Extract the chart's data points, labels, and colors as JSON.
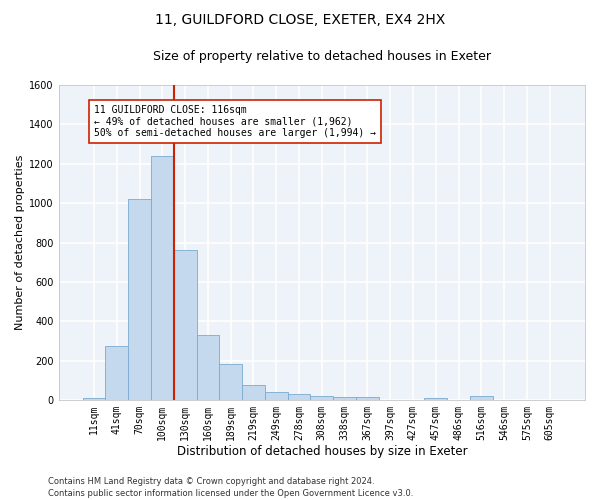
{
  "title1": "11, GUILDFORD CLOSE, EXETER, EX4 2HX",
  "title2": "Size of property relative to detached houses in Exeter",
  "xlabel": "Distribution of detached houses by size in Exeter",
  "ylabel": "Number of detached properties",
  "bar_labels": [
    "11sqm",
    "41sqm",
    "70sqm",
    "100sqm",
    "130sqm",
    "160sqm",
    "189sqm",
    "219sqm",
    "249sqm",
    "278sqm",
    "308sqm",
    "338sqm",
    "367sqm",
    "397sqm",
    "427sqm",
    "457sqm",
    "486sqm",
    "516sqm",
    "546sqm",
    "575sqm",
    "605sqm"
  ],
  "bar_values": [
    10,
    275,
    1020,
    1240,
    760,
    330,
    185,
    75,
    40,
    30,
    20,
    15,
    15,
    0,
    0,
    10,
    0,
    20,
    0,
    0,
    0
  ],
  "bar_color": "#c5d9ee",
  "bar_edge_color": "#7aaad0",
  "bar_width": 1.0,
  "ylim": [
    0,
    1600
  ],
  "yticks": [
    0,
    200,
    400,
    600,
    800,
    1000,
    1200,
    1400,
    1600
  ],
  "vline_pos": 3.53,
  "vline_color": "#cc2200",
  "annotation_box_text": "11 GUILDFORD CLOSE: 116sqm\n← 49% of detached houses are smaller (1,962)\n50% of semi-detached houses are larger (1,994) →",
  "footer": "Contains HM Land Registry data © Crown copyright and database right 2024.\nContains public sector information licensed under the Open Government Licence v3.0.",
  "bg_color": "#eef2f9",
  "grid_color": "#ffffff",
  "title1_fontsize": 10,
  "title2_fontsize": 9,
  "xlabel_fontsize": 8.5,
  "ylabel_fontsize": 8,
  "tick_fontsize": 7,
  "annotation_fontsize": 7,
  "footer_fontsize": 6
}
